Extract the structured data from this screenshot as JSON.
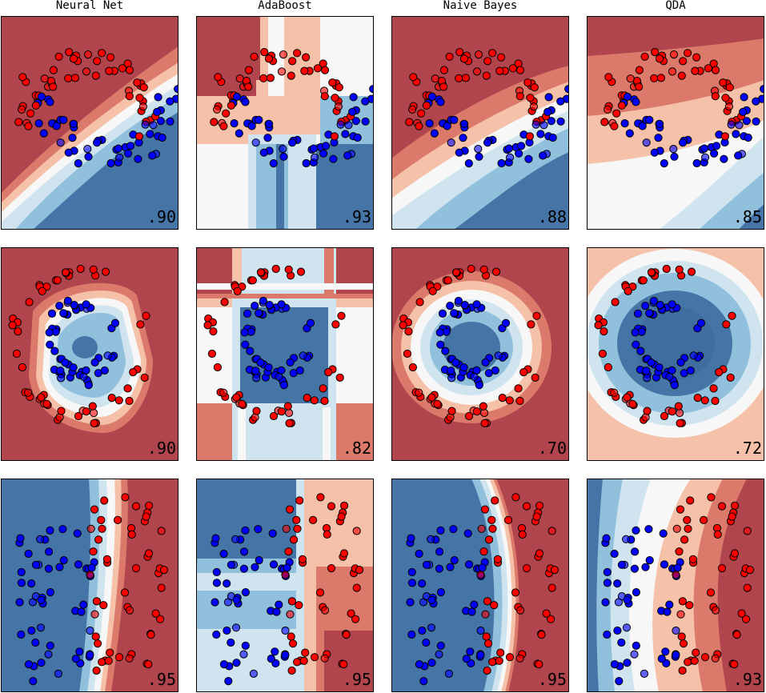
{
  "figure": {
    "columns": [
      "Neural Net",
      "AdaBoost",
      "Naive Bayes",
      "QDA"
    ]
  },
  "colors": {
    "red_dark": "#b0454e",
    "red_mid": "#db7a6a",
    "red_light": "#f5c1a8",
    "white": "#f7f7f7",
    "blue_light": "#cfe4ef",
    "blue_mid": "#91c0dc",
    "blue_dark": "#4575a7",
    "point_red": "#ff0000",
    "point_blue": "#0000ff"
  },
  "chart_data": [
    {
      "type": "scatter",
      "row": 1,
      "classifier": "Neural Net",
      "score": ".90",
      "dataset": "moons"
    },
    {
      "type": "scatter",
      "row": 1,
      "classifier": "AdaBoost",
      "score": ".93",
      "dataset": "moons"
    },
    {
      "type": "scatter",
      "row": 1,
      "classifier": "Naive Bayes",
      "score": ".88",
      "dataset": "moons"
    },
    {
      "type": "scatter",
      "row": 1,
      "classifier": "QDA",
      "score": ".85",
      "dataset": "moons"
    },
    {
      "type": "scatter",
      "row": 2,
      "classifier": "Neural Net",
      "score": ".90",
      "dataset": "circles"
    },
    {
      "type": "scatter",
      "row": 2,
      "classifier": "AdaBoost",
      "score": ".82",
      "dataset": "circles"
    },
    {
      "type": "scatter",
      "row": 2,
      "classifier": "Naive Bayes",
      "score": ".70",
      "dataset": "circles"
    },
    {
      "type": "scatter",
      "row": 2,
      "classifier": "QDA",
      "score": ".72",
      "dataset": "circles"
    },
    {
      "type": "scatter",
      "row": 3,
      "classifier": "Neural Net",
      "score": ".95",
      "dataset": "linear"
    },
    {
      "type": "scatter",
      "row": 3,
      "classifier": "AdaBoost",
      "score": ".95",
      "dataset": "linear"
    },
    {
      "type": "scatter",
      "row": 3,
      "classifier": "Naive Bayes",
      "score": ".95",
      "dataset": "linear"
    },
    {
      "type": "scatter",
      "row": 3,
      "classifier": "QDA",
      "score": ".93",
      "dataset": "linear"
    }
  ]
}
